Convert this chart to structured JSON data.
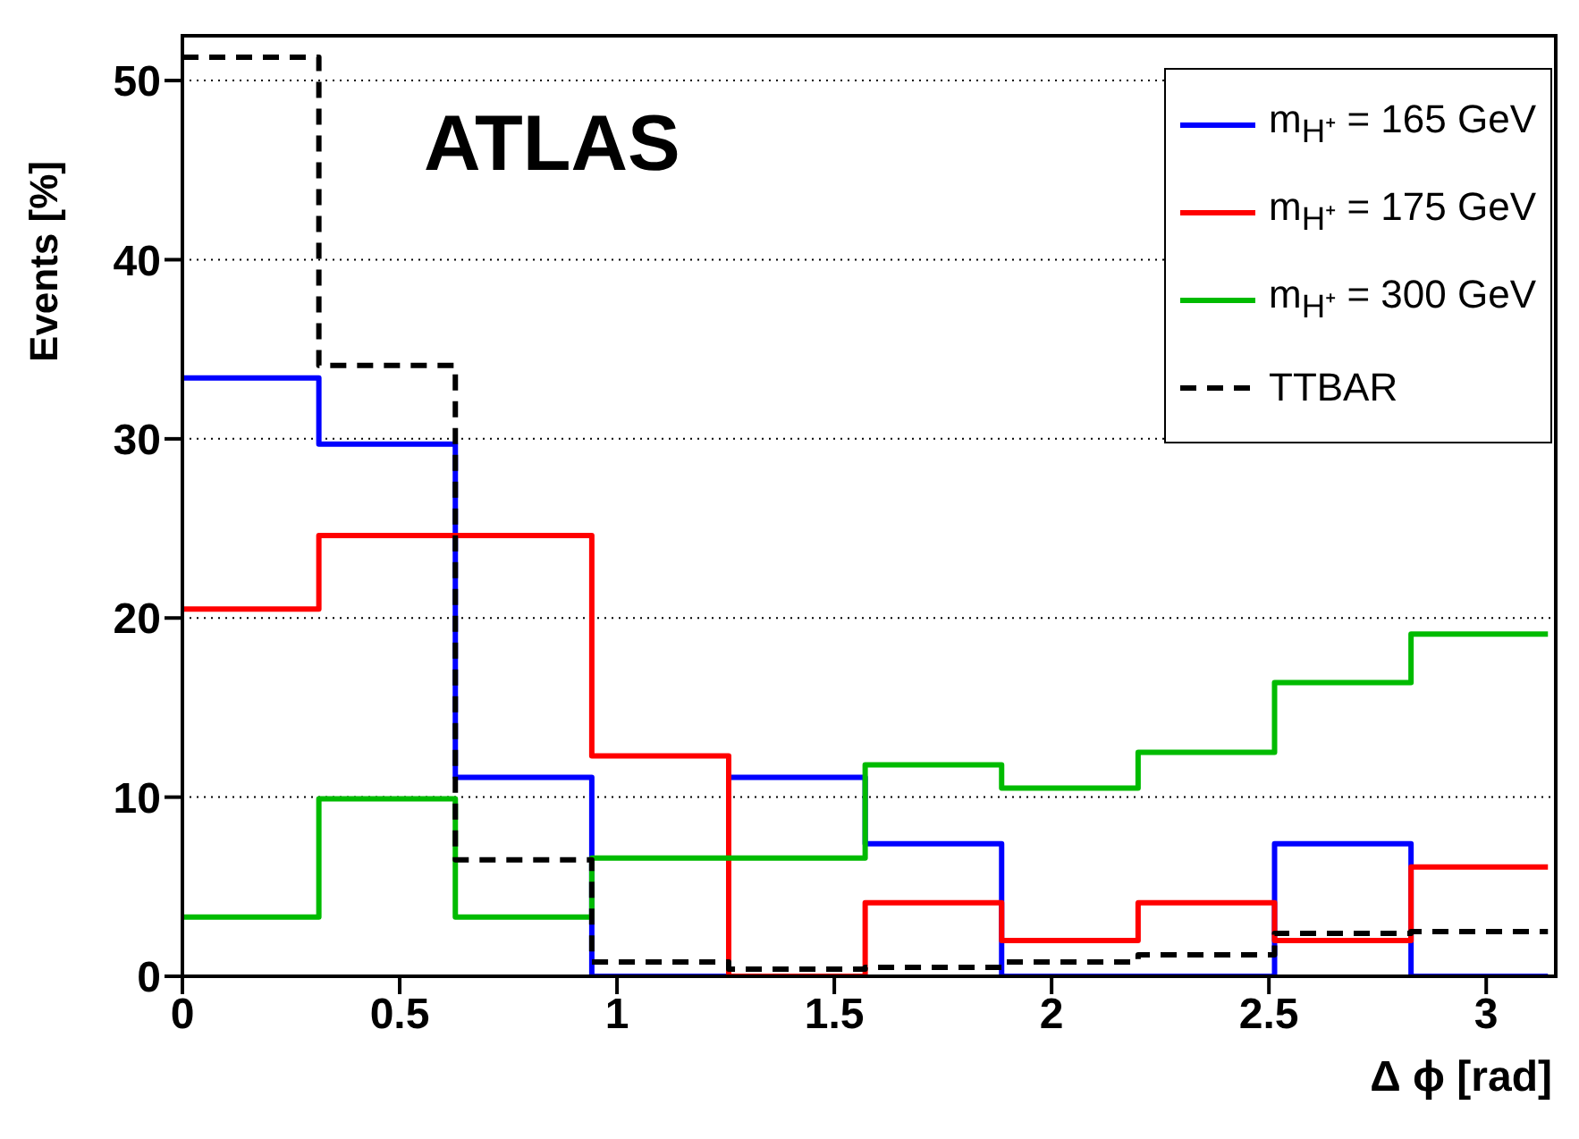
{
  "chart_data": {
    "type": "histogram",
    "xlabel": "Δ ϕ [rad]",
    "ylabel": "Events [%]",
    "annotations": [
      "ATLAS"
    ],
    "bins": [
      0,
      0.314,
      0.628,
      0.942,
      1.257,
      1.571,
      1.885,
      2.199,
      2.513,
      2.827,
      3.142
    ],
    "series": [
      {
        "name": "m$_{H⁺}$ = 165 GeV",
        "color": "#0000ff",
        "values": [
          33.4,
          29.7,
          11.1,
          0,
          11.1,
          7.4,
          0,
          0,
          7.4,
          0
        ]
      },
      {
        "name": "m$_{H⁺}$ = 175 GeV",
        "color": "#ff0000",
        "values": [
          20.5,
          24.6,
          24.6,
          12.3,
          0,
          4.1,
          2.0,
          4.1,
          2.0,
          6.1
        ]
      },
      {
        "name": "m$_{H⁺}$ = 300 GeV",
        "color": "#00bb00",
        "values": [
          3.3,
          9.9,
          3.3,
          6.6,
          6.6,
          11.8,
          10.5,
          12.5,
          16.4,
          19.1
        ]
      },
      {
        "name": "TTBAR",
        "color": "#000000",
        "line_style": "dashed",
        "values": [
          51.3,
          34.1,
          6.5,
          0.8,
          0.4,
          0.5,
          0.8,
          1.2,
          2.4,
          2.5
        ]
      }
    ],
    "xlim": [
      0,
      3.16
    ],
    "xticks": [
      0,
      0.5,
      1,
      1.5,
      2,
      2.5,
      3
    ],
    "ylim": [
      0,
      52.5
    ],
    "yticks": [
      0,
      10,
      20,
      30,
      40,
      50
    ],
    "grid": "y",
    "legend": "top right"
  }
}
